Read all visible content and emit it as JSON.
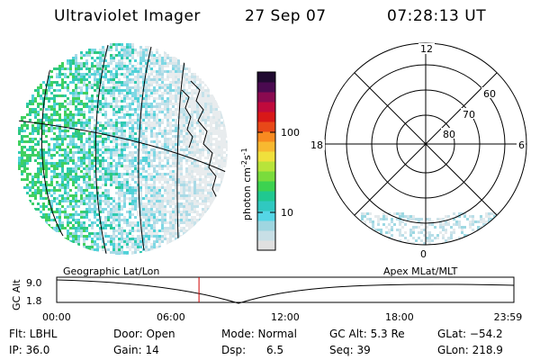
{
  "header": {
    "instrument": "Ultraviolet Imager",
    "date": "27 Sep 07",
    "time": "07:28:13 UT"
  },
  "colorbar": {
    "unit_label": "photon cm",
    "unit_sup1": "-2",
    "unit_mid": "s",
    "unit_sup2": "-1",
    "ticks": [
      {
        "label": "100",
        "value": 100
      },
      {
        "label": "10",
        "value": 10
      }
    ],
    "colors": [
      "#e0e0e0",
      "#c8dfe6",
      "#9fd6e0",
      "#55d6e6",
      "#30c8c0",
      "#20c890",
      "#3cd250",
      "#7adc3c",
      "#b8e43a",
      "#f0e03c",
      "#f8b830",
      "#f88a20",
      "#e84818",
      "#d81818",
      "#c00a3c",
      "#8a0a50",
      "#4a0a50",
      "#200a30"
    ]
  },
  "polar_plot": {
    "mlt_labels": {
      "top": "12",
      "left": "18",
      "right": "6",
      "bottom": "0"
    },
    "lat_labels": [
      "60",
      "70",
      "80"
    ]
  },
  "timeline": {
    "y_axis_label": "GC Alt",
    "y_ticks": [
      "9.0",
      "1.8"
    ],
    "left_caption": "Geographic Lat/Lon",
    "right_caption": "Apex MLat/MLT",
    "x_ticks": [
      "00:00",
      "06:00",
      "12:00",
      "18:00",
      "23:59"
    ],
    "current_time_marker_hours": 7.47,
    "marker_color": "#d00000"
  },
  "info": {
    "filter": "Flt: LBHL",
    "ip": "IP: 36.0",
    "door": "Door: Open",
    "gain": "Gain: 14",
    "mode": "Mode: Normal",
    "dsp": "Dsp:      6.5",
    "gc_alt": "GC Alt: 5.3 Re",
    "seq": "Seq: 39",
    "glat": "GLat: −54.2",
    "glon": "GLon: 218.9"
  }
}
